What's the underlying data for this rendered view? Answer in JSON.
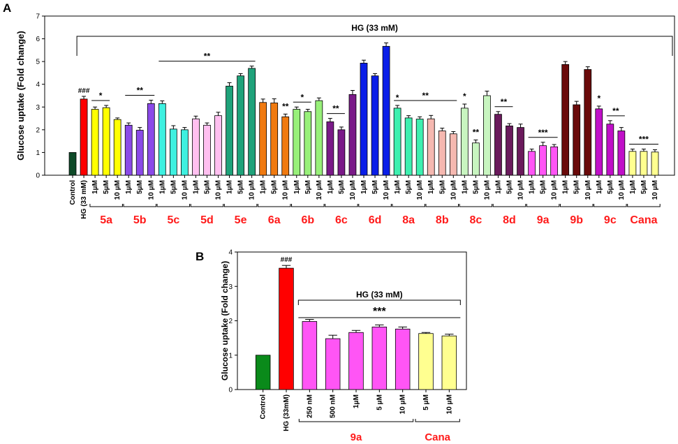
{
  "panels": {
    "a": {
      "label": "A"
    },
    "b": {
      "label": "B"
    }
  },
  "chart_data": [
    {
      "panel": "A",
      "type": "bar",
      "ylabel": "Glucose uptake  (Fold change)",
      "ylim": [
        0,
        7
      ],
      "yticks": [
        0,
        1,
        2,
        3,
        4,
        5,
        6,
        7
      ],
      "treatment_label": "HG (33 mM)",
      "bars": [
        {
          "label": "Control",
          "value": 1.0,
          "err": 0.0,
          "color": "#0e4a28",
          "group": ""
        },
        {
          "label": "HG (33 mM)",
          "value": 3.35,
          "err": 0.12,
          "color": "#ff0000",
          "group": "",
          "mark": "###"
        },
        {
          "label": "1μM",
          "value": 2.9,
          "err": 0.1,
          "color": "#ffff00",
          "group": "5a"
        },
        {
          "label": "5μM",
          "value": 2.97,
          "err": 0.1,
          "color": "#ffff00",
          "group": "5a"
        },
        {
          "label": "10 μM",
          "value": 2.45,
          "err": 0.07,
          "color": "#ffff00",
          "group": "5a"
        },
        {
          "label": "1μM",
          "value": 2.2,
          "err": 0.1,
          "color": "#8b4ae8",
          "group": "5b"
        },
        {
          "label": "5μM",
          "value": 1.98,
          "err": 0.12,
          "color": "#8b4ae8",
          "group": "5b"
        },
        {
          "label": "10 μM",
          "value": 3.15,
          "err": 0.15,
          "color": "#8b4ae8",
          "group": "5b"
        },
        {
          "label": "1μM",
          "value": 3.15,
          "err": 0.12,
          "color": "#3ef0e0",
          "group": "5c"
        },
        {
          "label": "5μM",
          "value": 2.03,
          "err": 0.15,
          "color": "#3ef0e0",
          "group": "5c"
        },
        {
          "label": "10 μM",
          "value": 2.0,
          "err": 0.1,
          "color": "#3ef0e0",
          "group": "5c"
        },
        {
          "label": "1μM",
          "value": 2.48,
          "err": 0.12,
          "color": "#ffc0f0",
          "group": "5d"
        },
        {
          "label": "5μM",
          "value": 2.2,
          "err": 0.1,
          "color": "#ffc0f0",
          "group": "5d"
        },
        {
          "label": "10 μM",
          "value": 2.62,
          "err": 0.15,
          "color": "#ffc0f0",
          "group": "5d"
        },
        {
          "label": "1μM",
          "value": 3.92,
          "err": 0.15,
          "color": "#1fa27a",
          "group": "5e"
        },
        {
          "label": "5μM",
          "value": 4.37,
          "err": 0.1,
          "color": "#1fa27a",
          "group": "5e"
        },
        {
          "label": "10 μM",
          "value": 4.7,
          "err": 0.1,
          "color": "#1fa27a",
          "group": "5e"
        },
        {
          "label": "1μM",
          "value": 3.2,
          "err": 0.15,
          "color": "#f07a10",
          "group": "6a"
        },
        {
          "label": "5μM",
          "value": 3.18,
          "err": 0.18,
          "color": "#f07a10",
          "group": "6a"
        },
        {
          "label": "10 μM",
          "value": 2.57,
          "err": 0.12,
          "color": "#f07a10",
          "group": "6a"
        },
        {
          "label": "1μM",
          "value": 2.9,
          "err": 0.1,
          "color": "#98f07a",
          "group": "6b"
        },
        {
          "label": "5μM",
          "value": 2.8,
          "err": 0.1,
          "color": "#98f07a",
          "group": "6b"
        },
        {
          "label": "10 μM",
          "value": 3.28,
          "err": 0.12,
          "color": "#98f07a",
          "group": "6b"
        },
        {
          "label": "1μM",
          "value": 2.35,
          "err": 0.15,
          "color": "#7a1a88",
          "group": "6c"
        },
        {
          "label": "5μM",
          "value": 2.0,
          "err": 0.12,
          "color": "#7a1a88",
          "group": "6c"
        },
        {
          "label": "10 μM",
          "value": 3.55,
          "err": 0.18,
          "color": "#7a1a88",
          "group": "6c"
        },
        {
          "label": "1μM",
          "value": 4.93,
          "err": 0.13,
          "color": "#0a1ee8",
          "group": "6d"
        },
        {
          "label": "5μM",
          "value": 4.37,
          "err": 0.1,
          "color": "#0a1ee8",
          "group": "6d"
        },
        {
          "label": "10 μM",
          "value": 5.67,
          "err": 0.15,
          "color": "#0a1ee8",
          "group": "6d"
        },
        {
          "label": "1μM",
          "value": 2.95,
          "err": 0.12,
          "color": "#3ef0b0",
          "group": "8a"
        },
        {
          "label": "5μM",
          "value": 2.52,
          "err": 0.1,
          "color": "#3ef0b0",
          "group": "8a"
        },
        {
          "label": "10 μM",
          "value": 2.47,
          "err": 0.1,
          "color": "#3ef0b0",
          "group": "8a"
        },
        {
          "label": "1μM",
          "value": 2.48,
          "err": 0.15,
          "color": "#f5b8b0",
          "group": "8b"
        },
        {
          "label": "5μM",
          "value": 1.95,
          "err": 0.12,
          "color": "#f5b8b0",
          "group": "8b"
        },
        {
          "label": "10 μM",
          "value": 1.82,
          "err": 0.1,
          "color": "#f5b8b0",
          "group": "8b"
        },
        {
          "label": "1μM",
          "value": 2.95,
          "err": 0.18,
          "color": "#c8f5c0",
          "group": "8c"
        },
        {
          "label": "5μM",
          "value": 1.42,
          "err": 0.13,
          "color": "#c8f5c0",
          "group": "8c"
        },
        {
          "label": "10 μM",
          "value": 3.5,
          "err": 0.2,
          "color": "#c8f5c0",
          "group": "8c"
        },
        {
          "label": "1μM",
          "value": 2.68,
          "err": 0.12,
          "color": "#6a1a5c",
          "group": "8d"
        },
        {
          "label": "5μM",
          "value": 2.17,
          "err": 0.1,
          "color": "#6a1a5c",
          "group": "8d"
        },
        {
          "label": "10 μM",
          "value": 2.1,
          "err": 0.15,
          "color": "#6a1a5c",
          "group": "8d"
        },
        {
          "label": "1μM",
          "value": 1.05,
          "err": 0.1,
          "color": "#ff55f5",
          "group": "9a"
        },
        {
          "label": "5μM",
          "value": 1.3,
          "err": 0.15,
          "color": "#ff55f5",
          "group": "9a"
        },
        {
          "label": "10 μM",
          "value": 1.25,
          "err": 0.1,
          "color": "#ff55f5",
          "group": "9a"
        },
        {
          "label": "1μM",
          "value": 4.87,
          "err": 0.13,
          "color": "#6a0a0a",
          "group": "9b"
        },
        {
          "label": "5μM",
          "value": 3.1,
          "err": 0.15,
          "color": "#6a0a0a",
          "group": "9b"
        },
        {
          "label": "10 μM",
          "value": 4.65,
          "err": 0.12,
          "color": "#6a0a0a",
          "group": "9b"
        },
        {
          "label": "1μM",
          "value": 2.92,
          "err": 0.12,
          "color": "#c010c8",
          "group": "9c"
        },
        {
          "label": "5μM",
          "value": 2.25,
          "err": 0.15,
          "color": "#c010c8",
          "group": "9c"
        },
        {
          "label": "10 μM",
          "value": 1.95,
          "err": 0.15,
          "color": "#c010c8",
          "group": "9c"
        },
        {
          "label": "1μM",
          "value": 1.05,
          "err": 0.1,
          "color": "#ffff90",
          "group": "Cana"
        },
        {
          "label": "5μM",
          "value": 1.05,
          "err": 0.1,
          "color": "#ffff90",
          "group": "Cana"
        },
        {
          "label": "10 μM",
          "value": 1.02,
          "err": 0.1,
          "color": "#ffff90",
          "group": "Cana"
        }
      ],
      "groups": [
        "5a",
        "5b",
        "5c",
        "5d",
        "5e",
        "6a",
        "6b",
        "6c",
        "6d",
        "8a",
        "8b",
        "8c",
        "8d",
        "9a",
        "9b",
        "9c",
        "Cana"
      ],
      "significance": [
        {
          "text": "*",
          "from": 2,
          "to": 3,
          "line": true
        },
        {
          "text": "**",
          "from": 5,
          "to": 7,
          "line": true
        },
        {
          "text": "**",
          "from": 8,
          "to": 16,
          "line": true
        },
        {
          "text": "**",
          "from": 19,
          "to": 19,
          "line": false
        },
        {
          "text": "*",
          "from": 20,
          "to": 21,
          "line": true
        },
        {
          "text": "**",
          "from": 23,
          "to": 24,
          "line": true
        },
        {
          "text": "*",
          "from": 29,
          "to": 29,
          "line": false
        },
        {
          "text": "**",
          "from": 29,
          "to": 34,
          "line": true
        },
        {
          "text": "*",
          "from": 35,
          "to": 35,
          "line": false
        },
        {
          "text": "**",
          "from": 36,
          "to": 36,
          "line": false
        },
        {
          "text": "**",
          "from": 38,
          "to": 39,
          "line": true
        },
        {
          "text": "***",
          "from": 41,
          "to": 43,
          "line": true
        },
        {
          "text": "*",
          "from": 47,
          "to": 47,
          "line": false
        },
        {
          "text": "**",
          "from": 48,
          "to": 49,
          "line": true
        },
        {
          "text": "***",
          "from": 50,
          "to": 52,
          "line": true
        }
      ]
    },
    {
      "panel": "B",
      "type": "bar",
      "ylabel": "Glucose uptake (Fold change)",
      "ylim": [
        0,
        4
      ],
      "yticks": [
        0,
        1,
        2,
        3,
        4
      ],
      "treatment_label": "HG (33 mM)",
      "significance_label": "***",
      "bars": [
        {
          "label": "Control",
          "value": 1.0,
          "err": 0.0,
          "color": "#0a8a1a",
          "group": ""
        },
        {
          "label": "HG (33mM)",
          "value": 3.53,
          "err": 0.08,
          "color": "#ff0000",
          "group": "",
          "mark": "###"
        },
        {
          "label": "250 nM",
          "value": 1.98,
          "err": 0.06,
          "color": "#ff55f5",
          "group": "9a"
        },
        {
          "label": "500 nM",
          "value": 1.48,
          "err": 0.1,
          "color": "#ff55f5",
          "group": "9a"
        },
        {
          "label": "1μM",
          "value": 1.66,
          "err": 0.06,
          "color": "#ff55f5",
          "group": "9a"
        },
        {
          "label": "5 μM",
          "value": 1.82,
          "err": 0.06,
          "color": "#ff55f5",
          "group": "9a"
        },
        {
          "label": "10 μM",
          "value": 1.76,
          "err": 0.06,
          "color": "#ff55f5",
          "group": "9a"
        },
        {
          "label": "5 μM",
          "value": 1.63,
          "err": 0.03,
          "color": "#ffff90",
          "group": "Cana"
        },
        {
          "label": "10 μM",
          "value": 1.56,
          "err": 0.05,
          "color": "#ffff90",
          "group": "Cana"
        }
      ],
      "groups": [
        "9a",
        "Cana"
      ]
    }
  ]
}
